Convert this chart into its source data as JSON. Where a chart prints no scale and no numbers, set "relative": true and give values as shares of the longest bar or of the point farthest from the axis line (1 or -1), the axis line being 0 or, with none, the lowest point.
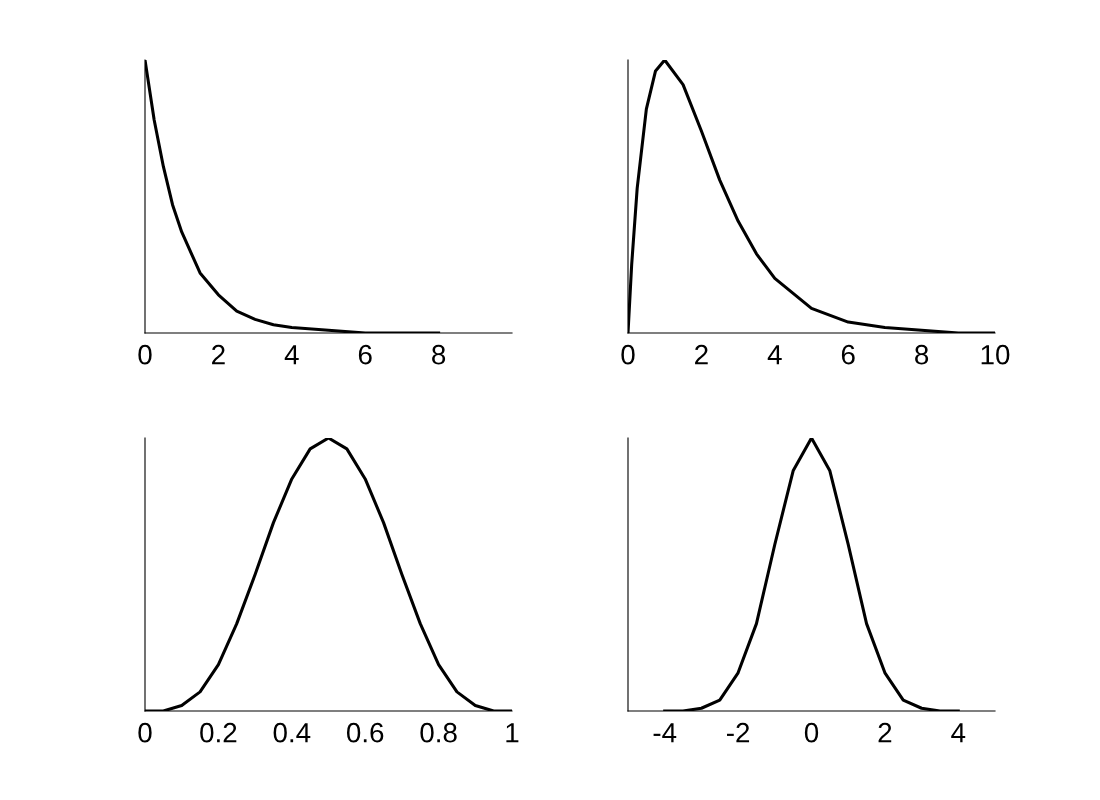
{
  "chart_data": [
    {
      "type": "line",
      "relative": true,
      "tick_labels": "x",
      "xlim": [
        0,
        10
      ],
      "xticks": [
        0,
        2,
        4,
        6,
        8
      ],
      "series": [
        {
          "color": "#000000",
          "x": [
            0,
            0.25,
            0.5,
            0.75,
            1,
            1.5,
            2,
            2.5,
            3,
            3.5,
            4,
            5,
            6,
            7,
            8
          ],
          "values": [
            1,
            0.78,
            0.61,
            0.47,
            0.37,
            0.22,
            0.14,
            0.08,
            0.05,
            0.03,
            0.02,
            0.01,
            0,
            0,
            0
          ]
        }
      ]
    },
    {
      "type": "line",
      "relative": true,
      "tick_labels": "x",
      "xlim": [
        0,
        10
      ],
      "xticks": [
        0,
        2,
        4,
        6,
        8,
        10
      ],
      "series": [
        {
          "color": "#000000",
          "x": [
            0,
            0.1,
            0.25,
            0.5,
            0.75,
            1,
            1.5,
            2,
            2.5,
            3,
            3.5,
            4,
            5,
            6,
            7,
            8,
            9,
            10
          ],
          "values": [
            0,
            0.25,
            0.53,
            0.82,
            0.96,
            1,
            0.91,
            0.74,
            0.56,
            0.41,
            0.29,
            0.2,
            0.09,
            0.04,
            0.02,
            0.01,
            0,
            0
          ]
        }
      ]
    },
    {
      "type": "line",
      "relative": true,
      "tick_labels": "x",
      "xlim": [
        0,
        1
      ],
      "xticks": [
        0,
        0.2,
        0.4,
        0.6,
        0.8,
        1
      ],
      "series": [
        {
          "color": "#000000",
          "x": [
            0,
            0.05,
            0.1,
            0.15,
            0.2,
            0.25,
            0.3,
            0.35,
            0.4,
            0.45,
            0.5,
            0.55,
            0.6,
            0.65,
            0.7,
            0.75,
            0.8,
            0.85,
            0.9,
            0.95,
            1
          ],
          "values": [
            0,
            0,
            0.02,
            0.07,
            0.17,
            0.32,
            0.5,
            0.69,
            0.85,
            0.96,
            1,
            0.96,
            0.85,
            0.69,
            0.5,
            0.32,
            0.17,
            0.07,
            0.02,
            0,
            0
          ]
        }
      ]
    },
    {
      "type": "line",
      "relative": true,
      "tick_labels": "x",
      "xlim": [
        -5,
        5
      ],
      "xticks": [
        {
          "value": -4,
          "label": "-4"
        },
        {
          "value": -2,
          "label": "-2"
        },
        0,
        2,
        4
      ],
      "series": [
        {
          "color": "#000000",
          "x": [
            -4,
            -3.5,
            -3,
            -2.5,
            -2,
            -1.5,
            -1,
            -0.5,
            0,
            0.5,
            1,
            1.5,
            2,
            2.5,
            3,
            3.5,
            4
          ],
          "values": [
            0,
            0,
            0.01,
            0.04,
            0.14,
            0.32,
            0.61,
            0.88,
            1,
            0.88,
            0.61,
            0.32,
            0.14,
            0.04,
            0.01,
            0,
            0
          ]
        }
      ]
    }
  ]
}
